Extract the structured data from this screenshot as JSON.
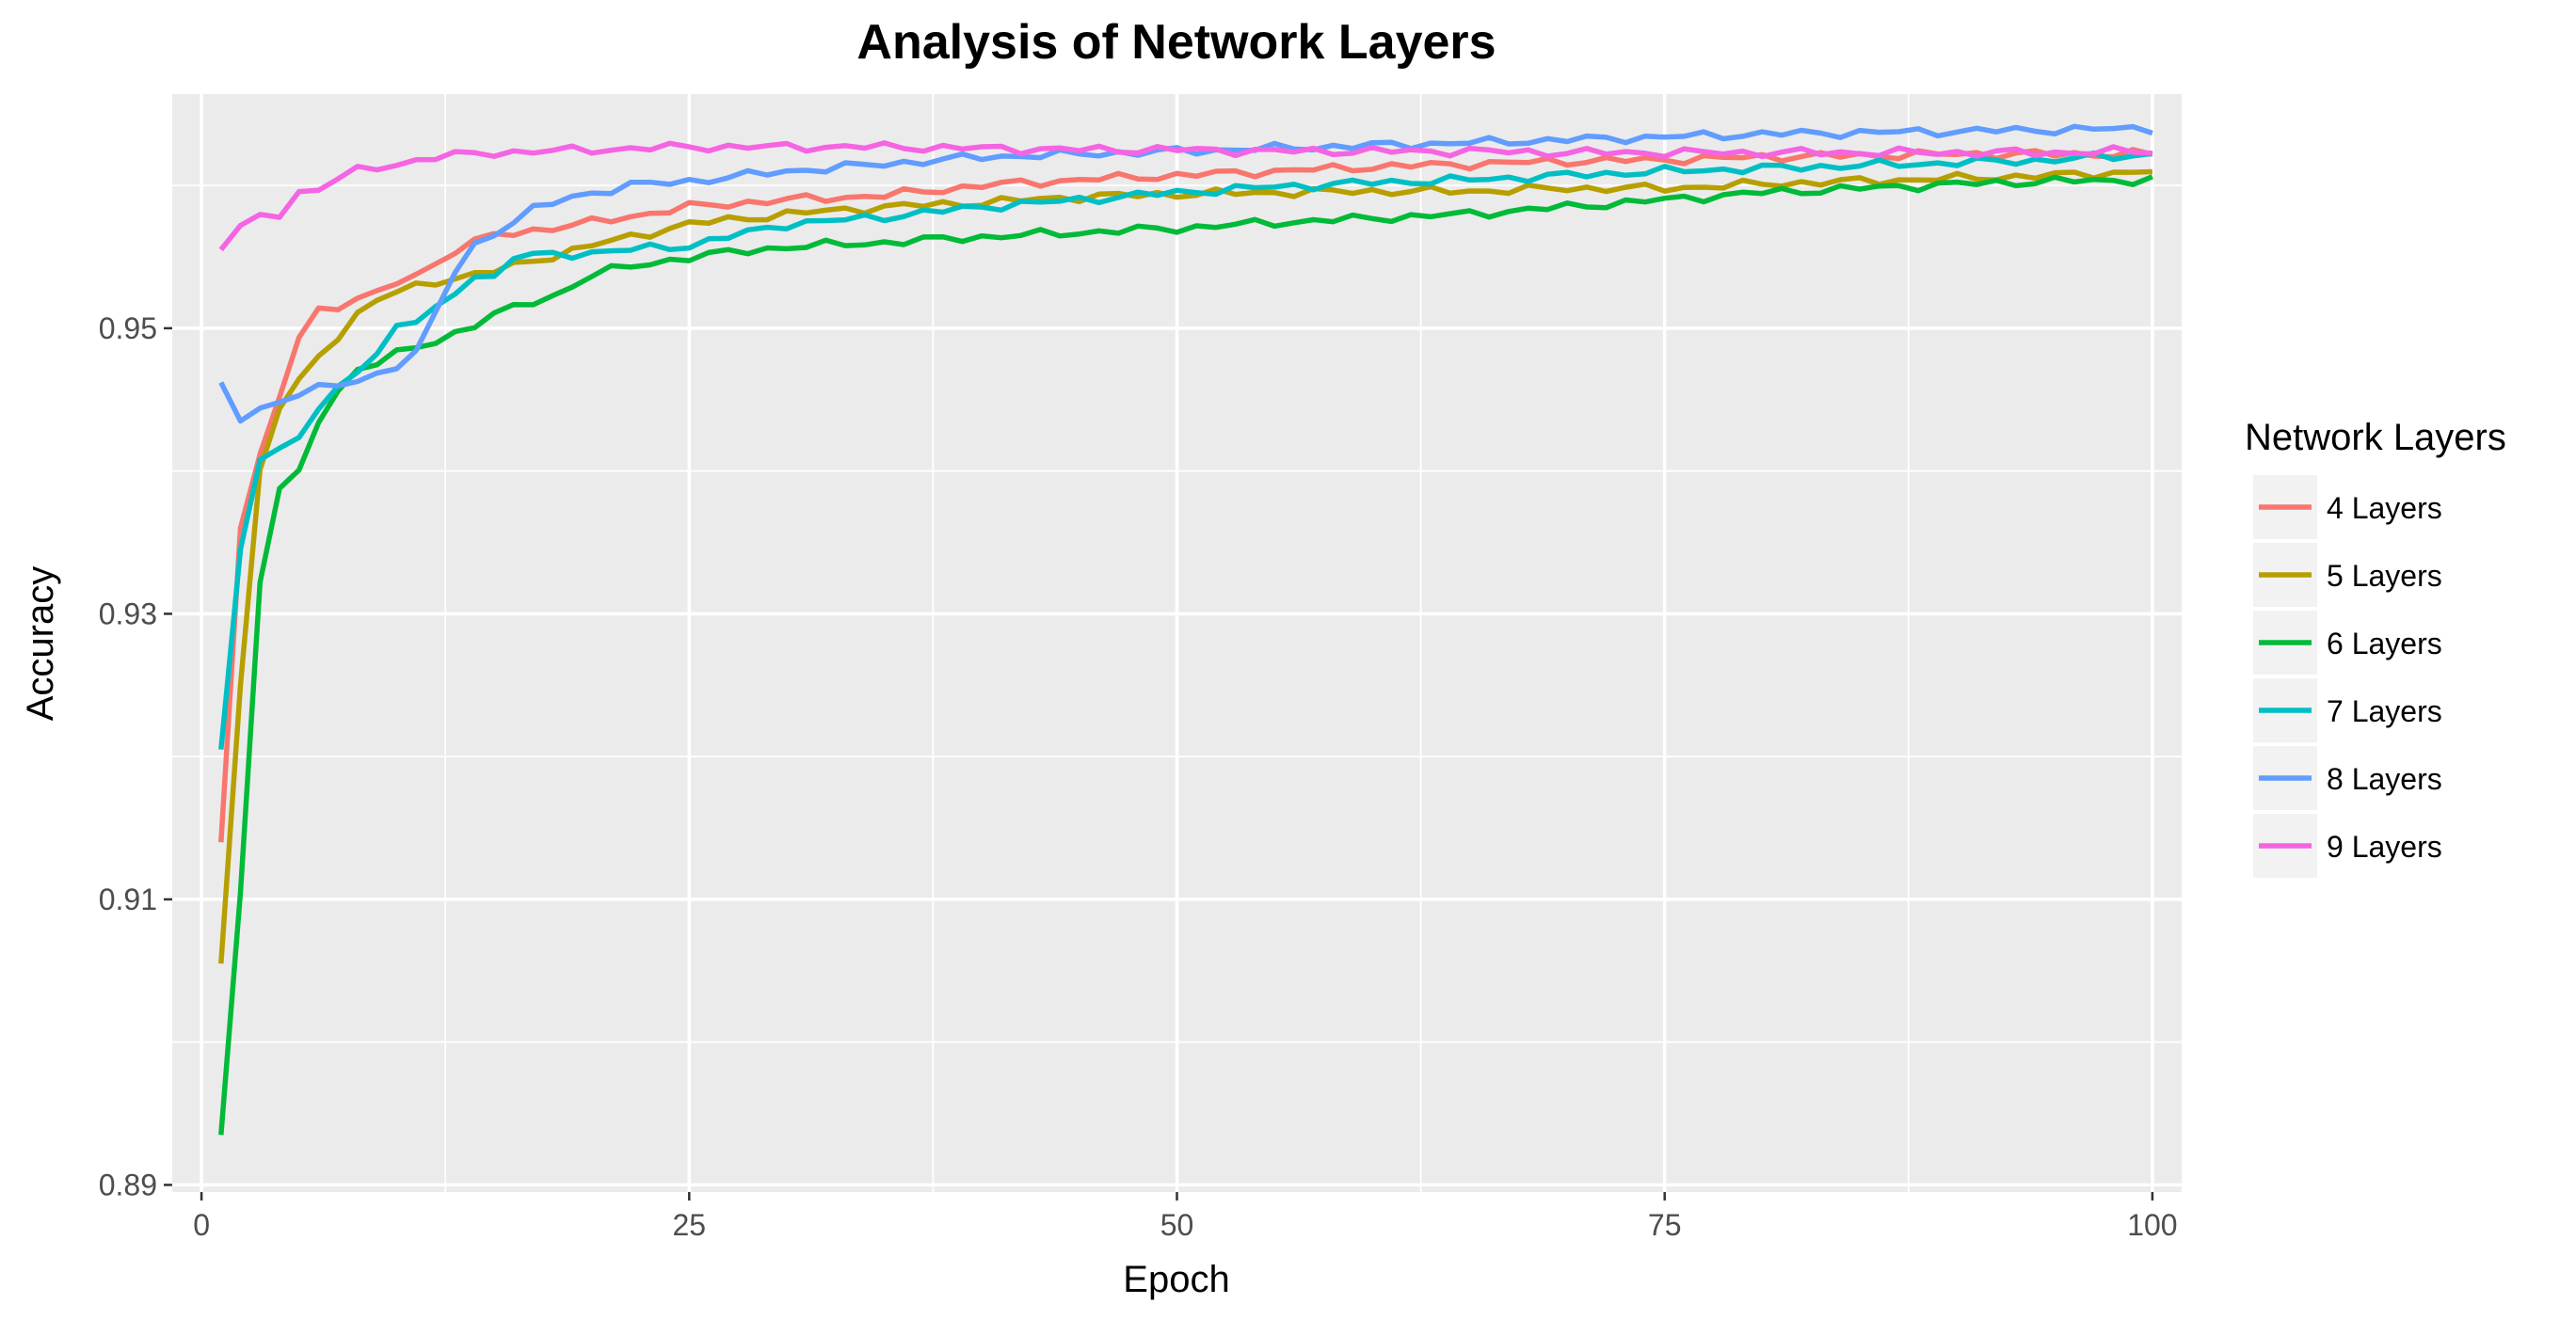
{
  "chart_data": {
    "type": "line",
    "title": "Analysis of Network Layers",
    "xlabel": "Epoch",
    "ylabel": "Accuracy",
    "xlim": [
      -1.5,
      101.5
    ],
    "ylim": [
      0.8895,
      0.9664
    ],
    "x_ticks": [
      0,
      25,
      50,
      75,
      100
    ],
    "x_tick_labels": [
      "0",
      "25",
      "50",
      "75",
      "100"
    ],
    "y_ticks": [
      0.89,
      0.91,
      0.93,
      0.95
    ],
    "y_tick_labels": [
      "0.89",
      "0.91",
      "0.93",
      "0.95"
    ],
    "y_minor_ticks": [
      0.9,
      0.92,
      0.94,
      0.96
    ],
    "x_minor_ticks": [
      12.5,
      37.5,
      62.5,
      87.5
    ],
    "grid": true,
    "panel_background": "#ebebeb",
    "legend": {
      "title": "Network Layers",
      "position": "right"
    },
    "series": [
      {
        "name": "4 Layers",
        "color": "#F8766D",
        "anchors": [
          [
            1,
            0.914
          ],
          [
            2,
            0.936
          ],
          [
            3,
            0.941
          ],
          [
            4,
            0.945
          ],
          [
            5,
            0.9495
          ],
          [
            6,
            0.9513
          ],
          [
            7,
            0.9515
          ],
          [
            8,
            0.9522
          ],
          [
            9,
            0.9523
          ],
          [
            10,
            0.9532
          ],
          [
            11,
            0.9538
          ],
          [
            12,
            0.9545
          ],
          [
            13,
            0.9555
          ],
          [
            15,
            0.9565
          ],
          [
            20,
            0.9574
          ],
          [
            25,
            0.9585
          ],
          [
            30,
            0.959
          ],
          [
            35,
            0.9593
          ],
          [
            40,
            0.96
          ],
          [
            45,
            0.9604
          ],
          [
            50,
            0.9607
          ],
          [
            55,
            0.961
          ],
          [
            60,
            0.9613
          ],
          [
            65,
            0.9615
          ],
          [
            70,
            0.9617
          ],
          [
            75,
            0.9618
          ],
          [
            80,
            0.962
          ],
          [
            85,
            0.9621
          ],
          [
            90,
            0.9622
          ],
          [
            95,
            0.9622
          ],
          [
            100,
            0.9622
          ]
        ]
      },
      {
        "name": "5 Layers",
        "color": "#B79F00",
        "anchors": [
          [
            1,
            0.9055
          ],
          [
            2,
            0.925
          ],
          [
            3,
            0.94
          ],
          [
            4,
            0.9445
          ],
          [
            5,
            0.9462
          ],
          [
            6,
            0.948
          ],
          [
            7,
            0.9495
          ],
          [
            8,
            0.951
          ],
          [
            9,
            0.952
          ],
          [
            10,
            0.9525
          ],
          [
            12,
            0.9533
          ],
          [
            15,
            0.954
          ],
          [
            20,
            0.9558
          ],
          [
            25,
            0.9573
          ],
          [
            30,
            0.958
          ],
          [
            35,
            0.9585
          ],
          [
            40,
            0.9588
          ],
          [
            45,
            0.9592
          ],
          [
            50,
            0.9594
          ],
          [
            55,
            0.9595
          ],
          [
            60,
            0.9596
          ],
          [
            65,
            0.9596
          ],
          [
            70,
            0.9598
          ],
          [
            75,
            0.9598
          ],
          [
            80,
            0.9601
          ],
          [
            85,
            0.9603
          ],
          [
            90,
            0.9605
          ],
          [
            95,
            0.9607
          ],
          [
            100,
            0.961
          ]
        ]
      },
      {
        "name": "6 Layers",
        "color": "#00BA38",
        "anchors": [
          [
            1,
            0.8935
          ],
          [
            2,
            0.9105
          ],
          [
            3,
            0.9325
          ],
          [
            4,
            0.9388
          ],
          [
            5,
            0.9398
          ],
          [
            6,
            0.9435
          ],
          [
            7,
            0.9455
          ],
          [
            8,
            0.9472
          ],
          [
            10,
            0.9482
          ],
          [
            12,
            0.949
          ],
          [
            15,
            0.951
          ],
          [
            18,
            0.9522
          ],
          [
            20,
            0.9538
          ],
          [
            22,
            0.9543
          ],
          [
            25,
            0.955
          ],
          [
            30,
            0.9557
          ],
          [
            35,
            0.956
          ],
          [
            40,
            0.9564
          ],
          [
            45,
            0.9567
          ],
          [
            50,
            0.957
          ],
          [
            55,
            0.9574
          ],
          [
            60,
            0.9577
          ],
          [
            65,
            0.958
          ],
          [
            70,
            0.9585
          ],
          [
            75,
            0.959
          ],
          [
            80,
            0.9595
          ],
          [
            85,
            0.9598
          ],
          [
            90,
            0.9601
          ],
          [
            95,
            0.9603
          ],
          [
            100,
            0.9604
          ]
        ]
      },
      {
        "name": "7 Layers",
        "color": "#00BFC4",
        "anchors": [
          [
            1,
            0.9205
          ],
          [
            2,
            0.9345
          ],
          [
            3,
            0.941
          ],
          [
            4,
            0.9415
          ],
          [
            5,
            0.9425
          ],
          [
            6,
            0.9442
          ],
          [
            7,
            0.9457
          ],
          [
            8,
            0.9472
          ],
          [
            9,
            0.9482
          ],
          [
            10,
            0.9502
          ],
          [
            11,
            0.9505
          ],
          [
            12,
            0.9512
          ],
          [
            13,
            0.9525
          ],
          [
            14,
            0.9538
          ],
          [
            15,
            0.9535
          ],
          [
            16,
            0.955
          ],
          [
            20,
            0.9553
          ],
          [
            25,
            0.9558
          ],
          [
            30,
            0.9573
          ],
          [
            35,
            0.9578
          ],
          [
            40,
            0.9585
          ],
          [
            45,
            0.959
          ],
          [
            50,
            0.9595
          ],
          [
            55,
            0.9599
          ],
          [
            60,
            0.9602
          ],
          [
            65,
            0.9604
          ],
          [
            70,
            0.9607
          ],
          [
            75,
            0.961
          ],
          [
            80,
            0.9612
          ],
          [
            85,
            0.9614
          ],
          [
            90,
            0.9616
          ],
          [
            95,
            0.9618
          ],
          [
            100,
            0.9622
          ]
        ]
      },
      {
        "name": "8 Layers",
        "color": "#619CFF",
        "anchors": [
          [
            1,
            0.9462
          ],
          [
            2,
            0.9435
          ],
          [
            3,
            0.9442
          ],
          [
            4,
            0.945
          ],
          [
            5,
            0.9455
          ],
          [
            6,
            0.9458
          ],
          [
            7,
            0.946
          ],
          [
            8,
            0.9462
          ],
          [
            9,
            0.9468
          ],
          [
            10,
            0.9475
          ],
          [
            11,
            0.9483
          ],
          [
            12,
            0.951
          ],
          [
            13,
            0.954
          ],
          [
            14,
            0.9558
          ],
          [
            15,
            0.9567
          ],
          [
            17,
            0.9583
          ],
          [
            19,
            0.9592
          ],
          [
            22,
            0.96
          ],
          [
            25,
            0.9603
          ],
          [
            30,
            0.961
          ],
          [
            35,
            0.9615
          ],
          [
            40,
            0.962
          ],
          [
            45,
            0.9622
          ],
          [
            50,
            0.9624
          ],
          [
            55,
            0.9626
          ],
          [
            60,
            0.9628
          ],
          [
            65,
            0.963
          ],
          [
            70,
            0.9632
          ],
          [
            75,
            0.9634
          ],
          [
            80,
            0.9636
          ],
          [
            85,
            0.9637
          ],
          [
            90,
            0.9638
          ],
          [
            95,
            0.9639
          ],
          [
            100,
            0.964
          ]
        ]
      },
      {
        "name": "9 Layers",
        "color": "#F564E3",
        "anchors": [
          [
            1,
            0.9555
          ],
          [
            2,
            0.9572
          ],
          [
            3,
            0.9578
          ],
          [
            4,
            0.958
          ],
          [
            5,
            0.9595
          ],
          [
            6,
            0.9598
          ],
          [
            7,
            0.9605
          ],
          [
            8,
            0.961
          ],
          [
            10,
            0.9615
          ],
          [
            12,
            0.962
          ],
          [
            15,
            0.9623
          ],
          [
            20,
            0.9625
          ],
          [
            25,
            0.9627
          ],
          [
            30,
            0.9627
          ],
          [
            35,
            0.9627
          ],
          [
            40,
            0.9626
          ],
          [
            45,
            0.9625
          ],
          [
            50,
            0.9625
          ],
          [
            55,
            0.9624
          ],
          [
            60,
            0.9624
          ],
          [
            65,
            0.9624
          ],
          [
            70,
            0.9623
          ],
          [
            75,
            0.9623
          ],
          [
            80,
            0.9623
          ],
          [
            85,
            0.9623
          ],
          [
            90,
            0.9623
          ],
          [
            95,
            0.9623
          ],
          [
            100,
            0.9624
          ]
        ]
      }
    ]
  }
}
